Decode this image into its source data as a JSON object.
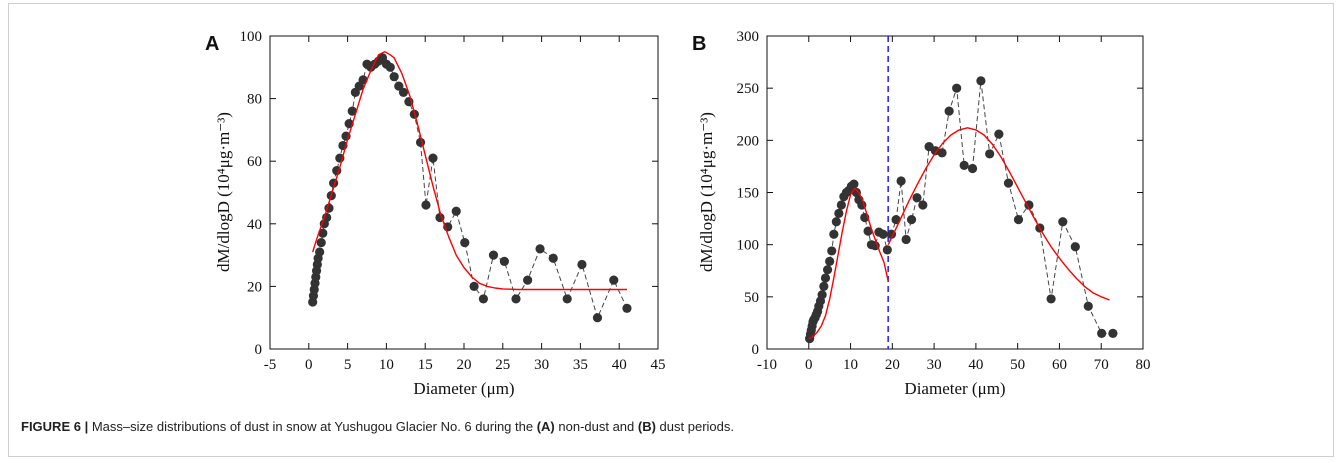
{
  "panel_labels": [
    "A",
    "B"
  ],
  "caption": {
    "label": "FIGURE 6 |",
    "text_before_a": " Mass–size distributions of dust in snow at Yushugou Glacier No. 6 during the ",
    "a_label": "(A)",
    "text_mid": " non-dust and ",
    "b_label": "(B)",
    "text_after": " dust periods."
  },
  "colors": {
    "points": "#333333",
    "fit": "#ff0000",
    "divider": "#1a1aff"
  },
  "chart_data": [
    {
      "type": "scatter",
      "panel": "A",
      "xlabel": "Diameter (μm)",
      "ylabel": "dM/dlogD (10⁴μg·m⁻³)",
      "xlim": [
        -5,
        45
      ],
      "ylim": [
        0,
        100
      ],
      "xticks": [
        -5,
        0,
        5,
        10,
        15,
        20,
        25,
        30,
        35,
        40,
        45
      ],
      "yticks": [
        0,
        20,
        40,
        60,
        80,
        100
      ],
      "series": [
        {
          "kind": "observed",
          "style": "dashed-line-with-markers",
          "x": [
            0.5,
            0.6,
            0.7,
            0.8,
            0.9,
            1.0,
            1.1,
            1.2,
            1.4,
            1.6,
            1.8,
            2.0,
            2.3,
            2.6,
            2.9,
            3.2,
            3.6,
            4.0,
            4.4,
            4.8,
            5.2,
            5.6,
            6.0,
            6.5,
            7.0,
            7.5,
            8.0,
            8.5,
            9.0,
            9.5,
            10.0,
            10.5,
            11.0,
            11.6,
            12.2,
            12.9,
            13.6,
            14.4,
            15.1,
            16.0,
            16.9,
            17.9,
            19.0,
            20.1,
            21.3,
            22.5,
            23.8,
            25.2,
            26.7,
            28.2,
            29.8,
            31.5,
            33.3,
            35.2,
            37.2,
            39.3,
            41.0
          ],
          "y": [
            15,
            17,
            19,
            21,
            23,
            25,
            27,
            29,
            31,
            34,
            37,
            40,
            42,
            45,
            49,
            53,
            57,
            61,
            65,
            68,
            72,
            76,
            82,
            84,
            86,
            91,
            90,
            91,
            92,
            93,
            91,
            90,
            87,
            84,
            82,
            79,
            75,
            66,
            46,
            61,
            42,
            39,
            44,
            34,
            20,
            16,
            30,
            28,
            16,
            22,
            32,
            29,
            16,
            27,
            10,
            22,
            13
          ]
        },
        {
          "kind": "fit",
          "style": "solid-line",
          "x": [
            0.5,
            1,
            2,
            3,
            4,
            5,
            6,
            7,
            8,
            9,
            9.8,
            10.5,
            11,
            12,
            13,
            14,
            15,
            16,
            17,
            18,
            19,
            20,
            21,
            22,
            23,
            24,
            25,
            26,
            27,
            28,
            30,
            32,
            35,
            38,
            41
          ],
          "y": [
            31,
            35,
            42,
            50,
            58,
            67,
            75,
            83,
            89,
            94,
            95,
            94,
            93,
            88,
            81,
            72,
            62,
            52,
            43,
            36,
            30,
            26,
            23,
            21,
            20,
            19.5,
            19.2,
            19.1,
            19,
            19,
            19,
            19,
            19,
            19,
            19
          ]
        }
      ]
    },
    {
      "type": "scatter",
      "panel": "B",
      "xlabel": "Diameter (μm)",
      "ylabel": "dM/dlogD (10⁴μg·m⁻³)",
      "xlim": [
        -10,
        80
      ],
      "ylim": [
        0,
        300
      ],
      "xticks": [
        -10,
        0,
        10,
        20,
        30,
        40,
        50,
        60,
        70,
        80
      ],
      "yticks": [
        0,
        50,
        100,
        150,
        200,
        250,
        300
      ],
      "vline_x": 19,
      "series": [
        {
          "kind": "observed",
          "style": "dashed-line-with-markers",
          "x": [
            0.2,
            0.4,
            0.6,
            0.8,
            1.0,
            1.2,
            1.5,
            1.8,
            2.1,
            2.4,
            2.8,
            3.2,
            3.6,
            4.0,
            4.5,
            5.0,
            5.5,
            6.0,
            6.6,
            7.2,
            7.8,
            8.4,
            9.0,
            9.6,
            10.2,
            10.8,
            11.4,
            12.0,
            12.7,
            13.4,
            14.2,
            15.0,
            15.9,
            16.8,
            17.8,
            18.8,
            19.8,
            20.9,
            22.1,
            23.3,
            24.6,
            25.9,
            27.3,
            28.8,
            30.3,
            31.9,
            33.6,
            35.4,
            37.2,
            39.2,
            41.2,
            43.3,
            45.5,
            47.8,
            50.2,
            52.7,
            55.3,
            58.0,
            60.8,
            63.8,
            66.9,
            70.1,
            72.8
          ],
          "y": [
            10,
            14,
            18,
            22,
            26,
            28,
            30,
            33,
            36,
            41,
            46,
            52,
            60,
            68,
            76,
            84,
            94,
            110,
            122,
            130,
            138,
            146,
            150,
            152,
            156,
            158,
            150,
            143,
            138,
            126,
            113,
            100,
            99,
            112,
            110,
            95,
            110,
            124,
            161,
            105,
            124,
            145,
            138,
            194,
            190,
            188,
            228,
            250,
            176,
            173,
            257,
            187,
            206,
            159,
            124,
            138,
            116,
            48,
            122,
            98,
            41,
            15,
            15
          ]
        },
        {
          "kind": "fit",
          "style": "solid-line",
          "x": [
            0,
            1,
            2,
            3,
            4,
            5,
            6,
            7,
            8,
            9,
            10,
            11,
            12,
            13,
            14,
            15,
            16,
            17,
            18,
            19
          ],
          "y": [
            10,
            12,
            16,
            22,
            32,
            48,
            68,
            90,
            112,
            132,
            148,
            154,
            150,
            141,
            128,
            115,
            104,
            93,
            83,
            65
          ]
        },
        {
          "kind": "fit",
          "style": "solid-line",
          "x": [
            19,
            20,
            22,
            24,
            26,
            28,
            30,
            32,
            34,
            36,
            38,
            40,
            42,
            44,
            46,
            48,
            50,
            52,
            54,
            56,
            58,
            60,
            62,
            64,
            66,
            68,
            70,
            72
          ],
          "y": [
            100,
            108,
            125,
            142,
            158,
            173,
            186,
            197,
            205,
            210,
            212,
            210,
            205,
            196,
            184,
            170,
            155,
            140,
            125,
            111,
            98,
            87,
            77,
            68,
            60,
            54,
            50,
            47
          ]
        }
      ]
    }
  ]
}
